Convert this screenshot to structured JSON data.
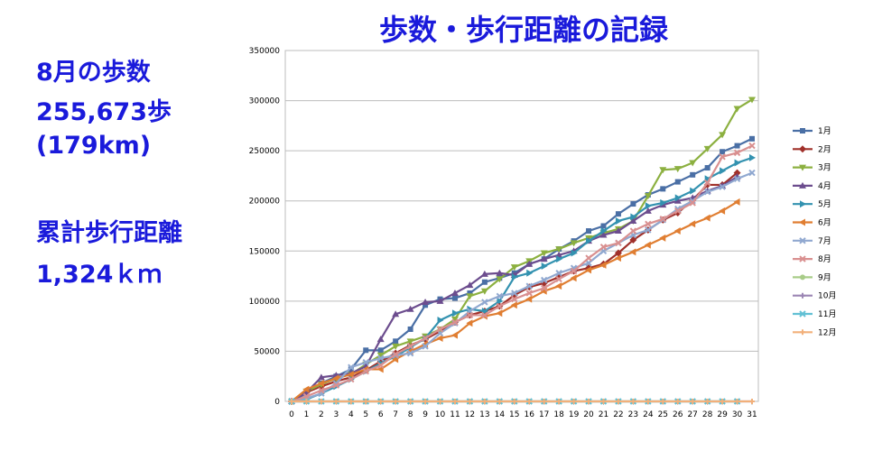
{
  "title": "歩数・歩行距離の記録",
  "summary": {
    "month_label": "8月の歩数",
    "steps": "255,673歩",
    "distance": "(179km)",
    "cumulative_label": "累計歩行距離",
    "cumulative_value": "1,324ｋｍ"
  },
  "chart_data": {
    "type": "line",
    "title": "",
    "xlabel": "",
    "ylabel": "",
    "x": [
      0,
      1,
      2,
      3,
      4,
      5,
      6,
      7,
      8,
      9,
      10,
      11,
      12,
      13,
      14,
      15,
      16,
      17,
      18,
      19,
      20,
      21,
      22,
      23,
      24,
      25,
      26,
      27,
      28,
      29,
      30,
      31
    ],
    "xlim": [
      0,
      31
    ],
    "ylim": [
      0,
      350000
    ],
    "yticks": [
      "0",
      "50000",
      "100000",
      "150000",
      "200000",
      "250000",
      "300000",
      "350000"
    ],
    "grid": "horizontal",
    "legend": "right",
    "series": [
      {
        "name": "1月",
        "color": "#4a6fa5",
        "marker": "square",
        "values": [
          0,
          8000,
          18000,
          25000,
          32000,
          51000,
          51000,
          60000,
          72000,
          96000,
          102000,
          103000,
          108000,
          119000,
          123000,
          128000,
          137000,
          142000,
          152000,
          160000,
          170000,
          175000,
          187000,
          197000,
          206000,
          212000,
          219000,
          226000,
          233000,
          249000,
          255000,
          262000
        ]
      },
      {
        "name": "2月",
        "color": "#a0302a",
        "marker": "diamond",
        "values": [
          0,
          9000,
          15000,
          20000,
          24000,
          31000,
          40000,
          48000,
          56000,
          62000,
          70000,
          79000,
          86000,
          90000,
          95000,
          106000,
          114000,
          118000,
          124000,
          130000,
          133000,
          137000,
          148000,
          161000,
          171000,
          181000,
          188000,
          201000,
          216000,
          216000,
          228000,
          null
        ]
      },
      {
        "name": "3月",
        "color": "#8cb040",
        "marker": "triangle-down",
        "values": [
          0,
          10000,
          17000,
          23000,
          27000,
          37000,
          46000,
          55000,
          60000,
          65000,
          72000,
          82000,
          105000,
          110000,
          122000,
          134000,
          140000,
          148000,
          152000,
          158000,
          163000,
          168000,
          172000,
          180000,
          205000,
          231000,
          232000,
          238000,
          252000,
          266000,
          292000,
          301000
        ]
      },
      {
        "name": "4月",
        "color": "#6c4d8e",
        "marker": "triangle",
        "values": [
          0,
          9000,
          24000,
          26000,
          28000,
          35000,
          62000,
          87000,
          92000,
          99000,
          100000,
          108000,
          116000,
          127000,
          128000,
          126000,
          137000,
          142000,
          146000,
          150000,
          160000,
          166000,
          170000,
          180000,
          190000,
          196000,
          200000,
          203000,
          210000,
          215000,
          224000,
          null
        ]
      },
      {
        "name": "5月",
        "color": "#3392b0",
        "marker": "triangle-right",
        "values": [
          0,
          2000,
          8000,
          15000,
          22000,
          30000,
          38000,
          45000,
          54000,
          63000,
          81000,
          88000,
          92000,
          90000,
          100000,
          124000,
          128000,
          135000,
          142000,
          148000,
          160000,
          170000,
          180000,
          184000,
          195000,
          198000,
          203000,
          210000,
          222000,
          230000,
          238000,
          243000
        ]
      },
      {
        "name": "6月",
        "color": "#e07e32",
        "marker": "triangle-left",
        "values": [
          0,
          12000,
          18000,
          23000,
          27000,
          32000,
          32000,
          42000,
          50000,
          57000,
          63000,
          66000,
          78000,
          85000,
          88000,
          96000,
          102000,
          110000,
          115000,
          123000,
          131000,
          136000,
          143000,
          149000,
          156000,
          163000,
          170000,
          177000,
          183000,
          190000,
          199000,
          null
        ]
      },
      {
        "name": "7月",
        "color": "#90a8d0",
        "marker": "x",
        "values": [
          0,
          3000,
          8000,
          18000,
          34000,
          39000,
          43000,
          46000,
          48000,
          55000,
          68000,
          78000,
          90000,
          99000,
          105000,
          108000,
          115000,
          121000,
          128000,
          133000,
          138000,
          150000,
          158000,
          166000,
          171000,
          181000,
          192000,
          200000,
          209000,
          214000,
          222000,
          228000
        ]
      },
      {
        "name": "8月",
        "color": "#d99090",
        "marker": "x",
        "values": [
          0,
          5000,
          11000,
          16000,
          22000,
          30000,
          36000,
          47000,
          55000,
          63000,
          72000,
          79000,
          86000,
          86000,
          95000,
          102000,
          108000,
          113000,
          122000,
          130000,
          143000,
          154000,
          158000,
          170000,
          177000,
          182000,
          190000,
          198000,
          218000,
          244000,
          248000,
          255000
        ]
      },
      {
        "name": "9月",
        "color": "#a8cc88",
        "marker": "circle",
        "values": [
          0,
          0,
          0,
          0,
          0,
          0,
          0,
          0,
          0,
          0,
          0,
          0,
          0,
          0,
          0,
          0,
          0,
          0,
          0,
          0,
          0,
          0,
          0,
          0,
          0,
          0,
          0,
          0,
          0,
          0,
          0,
          null
        ]
      },
      {
        "name": "10月",
        "color": "#9b86b4",
        "marker": "plus",
        "values": [
          0,
          0,
          0,
          0,
          0,
          0,
          0,
          0,
          0,
          0,
          0,
          0,
          0,
          0,
          0,
          0,
          0,
          0,
          0,
          0,
          0,
          0,
          0,
          0,
          0,
          0,
          0,
          0,
          0,
          0,
          0,
          0
        ]
      },
      {
        "name": "11月",
        "color": "#62c0d4",
        "marker": "x",
        "values": [
          0,
          0,
          0,
          0,
          0,
          0,
          0,
          0,
          0,
          0,
          0,
          0,
          0,
          0,
          0,
          0,
          0,
          0,
          0,
          0,
          0,
          0,
          0,
          0,
          0,
          0,
          0,
          0,
          0,
          0,
          0,
          null
        ]
      },
      {
        "name": "12月",
        "color": "#f2b07a",
        "marker": "plus",
        "values": [
          0,
          0,
          0,
          0,
          0,
          0,
          0,
          0,
          0,
          0,
          0,
          0,
          0,
          0,
          0,
          0,
          0,
          0,
          0,
          0,
          0,
          0,
          0,
          0,
          0,
          0,
          0,
          0,
          0,
          0,
          0,
          0
        ]
      }
    ]
  }
}
